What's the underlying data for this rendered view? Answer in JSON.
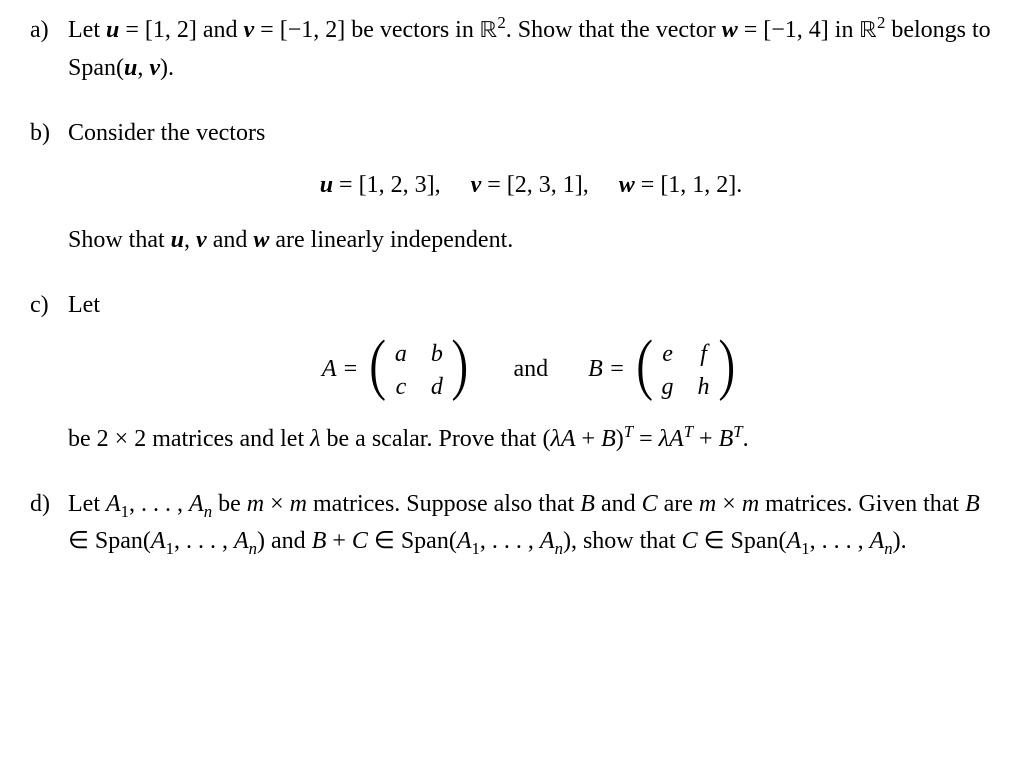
{
  "colors": {
    "text": "#000000",
    "background": "#ffffff"
  },
  "font": {
    "family": "Times New Roman / serif",
    "base_size_pt": 18
  },
  "parts": {
    "a": {
      "label": "a)",
      "text_before": "Let ",
      "u_sym": "u",
      "eq1": " = [1, 2] and ",
      "v_sym": "v",
      "eq2": " = [−1, 2] be vectors in ",
      "R2": "ℝ",
      "sup2": "2",
      "text_after1": ".  Show that the vector ",
      "w_sym": "w",
      "eq3": " = [−1, 4] in ",
      "text_after2": " belongs to Span(",
      "comma": ", ",
      "close": ")."
    },
    "b": {
      "label": "b)",
      "intro": "Consider the vectors",
      "display": {
        "u": "u",
        "u_val": " = [1, 2, 3],",
        "v": "v",
        "v_val": " = [2, 3, 1],",
        "w": "w",
        "w_val": " = [1, 1, 2]."
      },
      "concl_pre": "Show that ",
      "concl_u": "u",
      "concl_sep1": ", ",
      "concl_v": "v",
      "concl_sep2": " and ",
      "concl_w": "w",
      "concl_post": " are linearly independent."
    },
    "c": {
      "label": "c)",
      "intro": "Let",
      "A_eq": "A = ",
      "A": {
        "r1c1": "a",
        "r1c2": "b",
        "r2c1": "c",
        "r2c2": "d"
      },
      "and": "and",
      "B_eq": "B = ",
      "B": {
        "r1c1": "e",
        "r1c2": "f",
        "r2c1": "g",
        "r2c2": "h"
      },
      "after1": "be 2 × 2 matrices and let ",
      "lambda": "λ",
      "after2": " be a scalar.  Prove that (",
      "lhs_lA": "λA",
      "lhs_plus": " + ",
      "lhs_B": "B",
      "lhs_close": ")",
      "supT": "T",
      "eq": " = ",
      "rhs_lAT": "λA",
      "rhs_plus": " + ",
      "rhs_BT": "B",
      "period": "."
    },
    "d": {
      "label": "d)",
      "t1": "Let ",
      "A1": "A",
      "sub1": "1",
      "dots": ", . . . , ",
      "An": "A",
      "subn": "n",
      "t2": " be ",
      "m": "m",
      "times": " × ",
      "t3": " matrices. Suppose also that ",
      "B": "B",
      "t4": " and ",
      "C": "C",
      "t5": " are ",
      "t6": " matrices.  Given that ",
      "in": " ∈ ",
      "span": "Span(",
      "close": ")",
      "t7": " and ",
      "plus": " + ",
      "t8": ", show that ",
      "period": "."
    }
  }
}
